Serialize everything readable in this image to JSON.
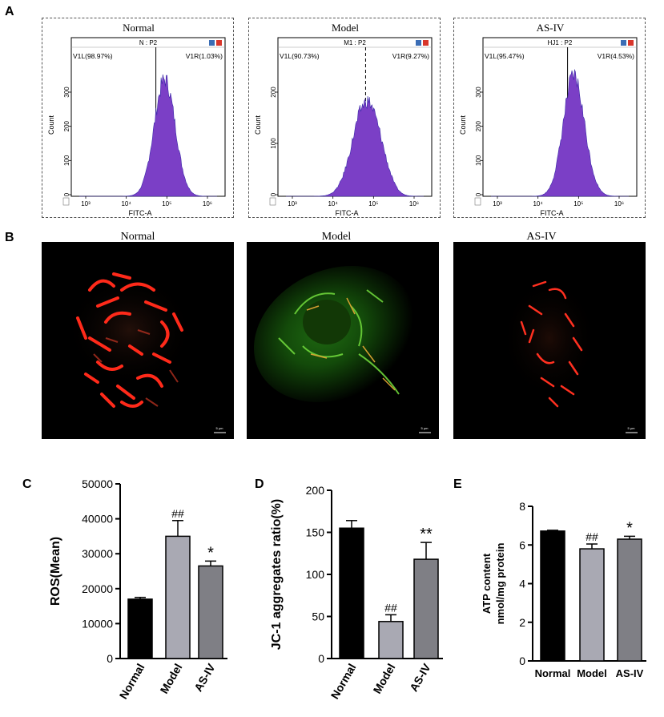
{
  "panel_labels": {
    "a": "A",
    "b": "B",
    "c": "C",
    "d": "D",
    "e": "E"
  },
  "flow": {
    "x_axis_label": "FITC-A",
    "y_axis_label": "Count",
    "x_ticks": [
      "10³",
      "10⁴",
      "10⁵",
      "10⁶"
    ],
    "panels": [
      {
        "title": "Normal",
        "gate": "N : P2",
        "left_label": "V1L(98.97%)",
        "right_label": "V1R(1.03%)",
        "y_ticks": [
          "0",
          "100",
          "200",
          "300"
        ],
        "gate_style": "solid"
      },
      {
        "title": "Model",
        "gate": "M1 : P2",
        "left_label": "V1L(90.73%)",
        "right_label": "V1R(9.27%)",
        "y_ticks": [
          "0",
          "100",
          "200"
        ],
        "gate_style": "dashed"
      },
      {
        "title": "AS-IV",
        "gate": "HJ1 : P2",
        "left_label": "V1L(95.47%)",
        "right_label": "V1R(4.53%)",
        "y_ticks": [
          "0",
          "100",
          "200",
          "300"
        ],
        "gate_style": "solid"
      }
    ]
  },
  "fluorescence": {
    "titles": [
      "Normal",
      "Model",
      "AS-IV"
    ],
    "scale_bar_label": "5 μm"
  },
  "colors": {
    "histogram": "#7b3fc6",
    "bar_normal": "#000000",
    "bar_model": "#a9a9b3",
    "bar_asiv": "#7f7f85"
  },
  "chart_data": [
    {
      "type": "bar",
      "panel": "C",
      "categories": [
        "Normal",
        "Model",
        "AS-IV"
      ],
      "values": [
        17000,
        35000,
        26500
      ],
      "errors": [
        500,
        4500,
        1400
      ],
      "annotations": [
        "",
        "##",
        "*"
      ],
      "ylabel": "ROS(Mean)",
      "ylim": [
        0,
        50000
      ],
      "yticks": [
        "0",
        "10000",
        "20000",
        "30000",
        "40000",
        "50000"
      ]
    },
    {
      "type": "bar",
      "panel": "D",
      "categories": [
        "Normal",
        "Model",
        "AS-IV"
      ],
      "values": [
        155,
        44,
        118
      ],
      "errors": [
        9,
        8,
        20
      ],
      "annotations": [
        "",
        "##",
        "**"
      ],
      "ylabel": "JC-1 aggregates ratio(%)",
      "ylim": [
        0,
        200
      ],
      "yticks": [
        "0",
        "50",
        "100",
        "150",
        "200"
      ]
    },
    {
      "type": "bar",
      "panel": "E",
      "categories": [
        "Normal",
        "Model",
        "AS-IV"
      ],
      "values": [
        6.72,
        5.8,
        6.3
      ],
      "errors": [
        0.04,
        0.25,
        0.15
      ],
      "annotations": [
        "",
        "##",
        "*"
      ],
      "ylabel": "ATP content\nnmol/mg protein",
      "ylim": [
        0,
        8
      ],
      "yticks": [
        "0",
        "2",
        "4",
        "6",
        "8"
      ]
    }
  ]
}
